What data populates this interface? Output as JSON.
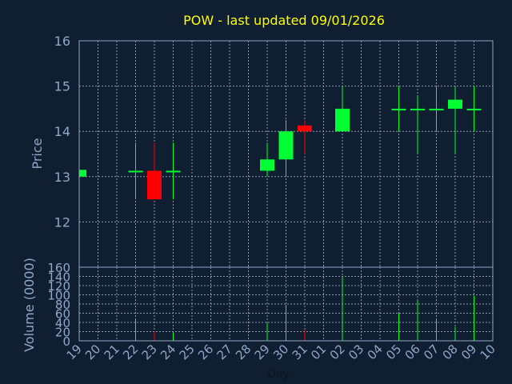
{
  "chart_data": {
    "type": "candlestick",
    "title": "POW - last updated 09/01/2026",
    "ylabel_price": "Price",
    "ylabel_volume": "Volume (0000)",
    "xlabel": "Day",
    "price_ylim": [
      11,
      16
    ],
    "price_ticks": [
      12,
      13,
      14,
      15,
      16
    ],
    "volume_ylim": [
      0,
      160
    ],
    "volume_ticks": [
      0,
      20,
      40,
      60,
      80,
      100,
      120,
      140,
      160
    ],
    "grid": true,
    "colors": {
      "background": "#0f1e30",
      "grid": "#8a96a8",
      "axis": "#8fa7c8",
      "title": "#ffff00",
      "up": "#00ff33",
      "down": "#ff0000"
    },
    "x_labels": [
      "19",
      "20",
      "21",
      "22",
      "23",
      "24",
      "25",
      "26",
      "27",
      "28",
      "29",
      "30",
      "31",
      "01",
      "02",
      "03",
      "04",
      "05",
      "06",
      "07",
      "08",
      "09",
      "10"
    ],
    "candles": [
      {
        "day": "19",
        "open": 13.0,
        "high": 13.15,
        "low": 13.0,
        "close": 13.15,
        "volume": 0
      },
      {
        "day": "22",
        "open": 13.13,
        "high": 13.75,
        "low": 12.5,
        "close": 13.13,
        "volume": 47
      },
      {
        "day": "23",
        "open": 13.13,
        "high": 13.75,
        "low": 12.5,
        "close": 12.5,
        "volume": 20
      },
      {
        "day": "24",
        "open": 13.13,
        "high": 13.75,
        "low": 12.5,
        "close": 13.13,
        "volume": 18
      },
      {
        "day": "29",
        "open": 13.13,
        "high": 13.75,
        "low": 13.0,
        "close": 13.38,
        "volume": 40
      },
      {
        "day": "30",
        "open": 13.38,
        "high": 14.25,
        "low": 13.0,
        "close": 14.0,
        "volume": 78
      },
      {
        "day": "31",
        "open": 14.13,
        "high": 14.25,
        "low": 13.5,
        "close": 14.0,
        "volume": 24
      },
      {
        "day": "02",
        "open": 14.0,
        "high": 15.0,
        "low": 14.0,
        "close": 14.5,
        "volume": 140
      },
      {
        "day": "05",
        "open": 14.5,
        "high": 15.0,
        "low": 14.0,
        "close": 14.5,
        "volume": 60
      },
      {
        "day": "06",
        "open": 14.5,
        "high": 14.8,
        "low": 13.5,
        "close": 14.5,
        "volume": 88
      },
      {
        "day": "07",
        "open": 14.5,
        "high": 15.0,
        "low": 14.0,
        "close": 14.5,
        "volume": 45
      },
      {
        "day": "08",
        "open": 14.5,
        "high": 15.0,
        "low": 13.5,
        "close": 14.7,
        "volume": 30
      },
      {
        "day": "09",
        "open": 14.5,
        "high": 15.0,
        "low": 14.0,
        "close": 14.5,
        "volume": 98
      }
    ]
  }
}
